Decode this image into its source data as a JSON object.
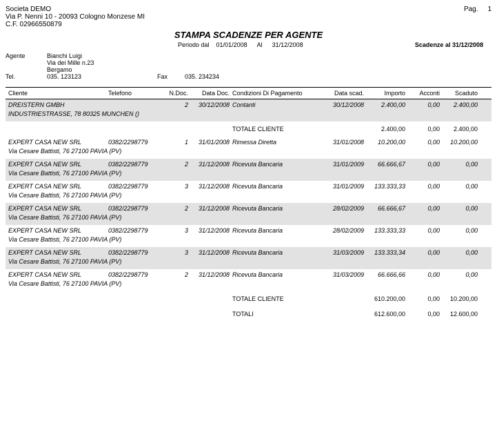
{
  "page": {
    "label": "Pag.",
    "num": "1"
  },
  "company": {
    "name": "Societa DEMO",
    "addr": "Via P. Nenni 10 - 20093 Cologno Monzese MI",
    "cf": "C.F. 02966550879"
  },
  "title": "STAMPA SCADENZE PER AGENTE",
  "period": {
    "label": "Periodo dal",
    "from": "01/01/2008",
    "al_label": "Al",
    "to": "31/12/2008"
  },
  "scadenze": {
    "label": "Scadenze al 31/12/2008"
  },
  "agent": {
    "label": "Agente",
    "name": "Bianchi Luigi",
    "addr1": "Via dei Mille n.23",
    "addr2": "Bergamo",
    "tel_label": "Tel.",
    "tel": "035. 123123",
    "fax_label": "Fax",
    "fax": "035. 234234"
  },
  "columns": {
    "cliente": "Cliente",
    "telefono": "Telefono",
    "ndoc": "N.Doc.",
    "datadoc": "Data Doc.",
    "cond": "Condizioni Di Pagamento",
    "datascad": "Data scad.",
    "importo": "Importo",
    "acconti": "Acconti",
    "scaduto": "Scaduto"
  },
  "rows": [
    {
      "shade": true,
      "cliente": "DREISTERN GMBH",
      "telefono": "",
      "ndoc": "2",
      "datadoc": "30/12/2008",
      "cond": "Contanti",
      "datascad": "30/12/2008",
      "importo": "2.400,00",
      "acconti": "0,00",
      "scaduto": "2.400,00",
      "addr": "INDUSTRIESTRASSE, 78   80325 MUNCHEN ()"
    },
    {
      "total": true,
      "shade": false,
      "label": "TOTALE CLIENTE",
      "importo": "2.400,00",
      "acconti": "0,00",
      "scaduto": "2.400,00"
    },
    {
      "shade": false,
      "cliente": "EXPERT CASA NEW SRL",
      "telefono": "0382/2298779",
      "ndoc": "1",
      "datadoc": "31/01/2008",
      "cond": "Rimessa Diretta",
      "datascad": "31/01/2008",
      "importo": "10.200,00",
      "acconti": "0,00",
      "scaduto": "10.200,00",
      "addr": "Via Cesare Battisti, 76   27100 PAVIA (PV)"
    },
    {
      "shade": true,
      "cliente": "EXPERT CASA NEW SRL",
      "telefono": "0382/2298779",
      "ndoc": "2",
      "datadoc": "31/12/2008",
      "cond": "Ricevuta Bancaria",
      "datascad": "31/01/2009",
      "importo": "66.666,67",
      "acconti": "0,00",
      "scaduto": "0,00",
      "addr": "Via Cesare Battisti, 76   27100 PAVIA (PV)"
    },
    {
      "shade": false,
      "cliente": "EXPERT CASA NEW SRL",
      "telefono": "0382/2298779",
      "ndoc": "3",
      "datadoc": "31/12/2008",
      "cond": "Ricevuta Bancaria",
      "datascad": "31/01/2009",
      "importo": "133.333,33",
      "acconti": "0,00",
      "scaduto": "0,00",
      "addr": "Via Cesare Battisti, 76   27100 PAVIA (PV)"
    },
    {
      "shade": true,
      "cliente": "EXPERT CASA NEW SRL",
      "telefono": "0382/2298779",
      "ndoc": "2",
      "datadoc": "31/12/2008",
      "cond": "Ricevuta Bancaria",
      "datascad": "28/02/2009",
      "importo": "66.666,67",
      "acconti": "0,00",
      "scaduto": "0,00",
      "addr": "Via Cesare Battisti, 76   27100 PAVIA (PV)"
    },
    {
      "shade": false,
      "cliente": "EXPERT CASA NEW SRL",
      "telefono": "0382/2298779",
      "ndoc": "3",
      "datadoc": "31/12/2008",
      "cond": "Ricevuta Bancaria",
      "datascad": "28/02/2009",
      "importo": "133.333,33",
      "acconti": "0,00",
      "scaduto": "0,00",
      "addr": "Via Cesare Battisti, 76   27100 PAVIA (PV)"
    },
    {
      "shade": true,
      "cliente": "EXPERT CASA NEW SRL",
      "telefono": "0382/2298779",
      "ndoc": "3",
      "datadoc": "31/12/2008",
      "cond": "Ricevuta Bancaria",
      "datascad": "31/03/2009",
      "importo": "133.333,34",
      "acconti": "0,00",
      "scaduto": "0,00",
      "addr": "Via Cesare Battisti, 76   27100 PAVIA (PV)"
    },
    {
      "shade": false,
      "cliente": "EXPERT CASA NEW SRL",
      "telefono": "0382/2298779",
      "ndoc": "2",
      "datadoc": "31/12/2008",
      "cond": "Ricevuta Bancaria",
      "datascad": "31/03/2009",
      "importo": "66.666,66",
      "acconti": "0,00",
      "scaduto": "0,00",
      "addr": "Via Cesare Battisti, 76   27100 PAVIA (PV)"
    },
    {
      "total": true,
      "shade": false,
      "label": "TOTALE CLIENTE",
      "importo": "610.200,00",
      "acconti": "0,00",
      "scaduto": "10.200,00"
    },
    {
      "total": true,
      "shade": false,
      "label": "TOTALI",
      "importo": "612.600,00",
      "acconti": "0,00",
      "scaduto": "12.600,00"
    }
  ]
}
